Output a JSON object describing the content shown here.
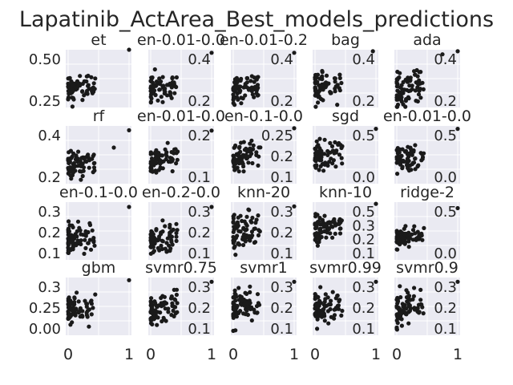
{
  "figure": {
    "title": "Lapatinib_ActArea_Best_models_predictions",
    "colors": {
      "panel_bg": "#eaeaf2",
      "grid": "#ffffff",
      "point": "#1a1a1a",
      "text": "#262626"
    }
  },
  "chart_data": [
    {
      "type": "scatter",
      "title": "et",
      "grid": true,
      "ylim": [
        0.1,
        0.5
      ],
      "yticks": [
        "0.25",
        "0.50"
      ],
      "xticks": [],
      "seed": 1,
      "n": 75,
      "y_mean": 0.22,
      "y_spread": 0.07,
      "outliers": [
        [
          1.0,
          0.5
        ]
      ]
    },
    {
      "type": "scatter",
      "title": "en-0.01-0.0",
      "grid": true,
      "ylim": [
        0.08,
        0.46
      ],
      "yticks": [
        "0.2",
        "0.4"
      ],
      "xticks": [],
      "seed": 2,
      "n": 75,
      "y_mean": 0.2,
      "y_spread": 0.07,
      "outliers": [
        [
          1.0,
          0.44
        ]
      ]
    },
    {
      "type": "scatter",
      "title": "en-0.01-0.2",
      "grid": true,
      "ylim": [
        0.08,
        0.46
      ],
      "yticks": [
        "0.2",
        "0.4"
      ],
      "xticks": [],
      "seed": 3,
      "n": 75,
      "y_mean": 0.2,
      "y_spread": 0.07,
      "outliers": [
        [
          1.0,
          0.44
        ]
      ]
    },
    {
      "type": "scatter",
      "title": "bag",
      "grid": true,
      "ylim": [
        0.08,
        0.46
      ],
      "yticks": [
        "0.2",
        "0.4"
      ],
      "xticks": [],
      "seed": 4,
      "n": 75,
      "y_mean": 0.2,
      "y_spread": 0.08,
      "outliers": [
        [
          0.95,
          0.45
        ]
      ]
    },
    {
      "type": "scatter",
      "title": "ada",
      "grid": true,
      "ylim": [
        0.08,
        0.46
      ],
      "yticks": [
        "0.2",
        "0.4"
      ],
      "xticks": [],
      "seed": 5,
      "n": 75,
      "y_mean": 0.18,
      "y_spread": 0.09,
      "outliers": [
        [
          0.75,
          0.43
        ],
        [
          1.0,
          0.45
        ]
      ]
    },
    {
      "type": "scatter",
      "title": "rf",
      "grid": true,
      "ylim": [
        0.05,
        0.45
      ],
      "yticks": [
        "0.2",
        "0.4"
      ],
      "xticks": [],
      "seed": 6,
      "n": 75,
      "y_mean": 0.18,
      "y_spread": 0.07,
      "outliers": [
        [
          0.75,
          0.3
        ],
        [
          1.0,
          0.42
        ]
      ]
    },
    {
      "type": "scatter",
      "title": "en-0.01-0.0",
      "grid": true,
      "ylim": [
        0.05,
        0.3
      ],
      "yticks": [
        "0.1",
        "0.2"
      ],
      "xticks": [],
      "seed": 7,
      "n": 75,
      "y_mean": 0.15,
      "y_spread": 0.04,
      "outliers": [
        [
          1.0,
          0.28
        ]
      ]
    },
    {
      "type": "scatter",
      "title": "en-0.1-0.0",
      "grid": true,
      "ylim": [
        0.05,
        0.3
      ],
      "yticks": [
        "0.1",
        "0.2",
        "0.25"
      ],
      "xticks": [],
      "seed": 8,
      "n": 75,
      "y_mean": 0.15,
      "y_spread": 0.05,
      "outliers": [
        [
          1.0,
          0.29
        ]
      ]
    },
    {
      "type": "scatter",
      "title": "sgd",
      "grid": true,
      "ylim": [
        -0.05,
        0.55
      ],
      "yticks": [
        "0.0",
        "0.5"
      ],
      "xticks": [],
      "seed": 9,
      "n": 75,
      "y_mean": 0.22,
      "y_spread": 0.12,
      "outliers": [
        [
          1.0,
          0.52
        ]
      ]
    },
    {
      "type": "scatter",
      "title": "en-0.01-0.0",
      "grid": true,
      "ylim": [
        -0.05,
        0.55
      ],
      "yticks": [
        "0.0",
        "0.5"
      ],
      "xticks": [],
      "seed": 10,
      "n": 75,
      "y_mean": 0.2,
      "y_spread": 0.1,
      "outliers": [
        [
          1.0,
          0.52
        ]
      ]
    },
    {
      "type": "scatter",
      "title": "en-0.1-0.0",
      "grid": true,
      "ylim": [
        0.08,
        0.32
      ],
      "yticks": [
        "0.1",
        "0.2",
        "0.3"
      ],
      "xticks": [],
      "seed": 11,
      "n": 75,
      "y_mean": 0.16,
      "y_spread": 0.05,
      "outliers": [
        [
          1.0,
          0.3
        ]
      ]
    },
    {
      "type": "scatter",
      "title": "en-0.2-0.0",
      "grid": true,
      "ylim": [
        0.08,
        0.32
      ],
      "yticks": [
        "0.1",
        "0.2",
        "0.3"
      ],
      "xticks": [],
      "seed": 12,
      "n": 75,
      "y_mean": 0.16,
      "y_spread": 0.05,
      "outliers": [
        [
          1.0,
          0.3
        ]
      ]
    },
    {
      "type": "scatter",
      "title": "knn-20",
      "grid": true,
      "ylim": [
        0.05,
        0.32
      ],
      "yticks": [
        "0.1",
        "0.2",
        "0.3"
      ],
      "xticks": [],
      "seed": 13,
      "n": 75,
      "y_mean": 0.18,
      "y_spread": 0.07,
      "outliers": [
        [
          1.0,
          0.3
        ]
      ]
    },
    {
      "type": "scatter",
      "title": "knn-10",
      "grid": true,
      "ylim": [
        -0.05,
        0.62
      ],
      "yticks": [
        "0.1",
        "0.2",
        "0.3",
        "0.5"
      ],
      "xticks": [],
      "seed": 14,
      "n": 75,
      "y_mean": 0.3,
      "y_spread": 0.13,
      "outliers": [
        [
          1.0,
          0.6
        ]
      ]
    },
    {
      "type": "scatter",
      "title": "ridge-2",
      "grid": true,
      "ylim": [
        -0.05,
        0.62
      ],
      "yticks": [
        "0.0",
        "0.5"
      ],
      "xticks": [],
      "seed": 15,
      "n": 75,
      "y_mean": 0.2,
      "y_spread": 0.08,
      "outliers": [
        [
          1.0,
          0.55
        ]
      ]
    },
    {
      "type": "scatter",
      "title": "gbm",
      "grid": true,
      "ylim": [
        -0.02,
        0.42
      ],
      "yticks": [
        "0.00",
        "0.25",
        "0.3"
      ],
      "xticks": [
        "0",
        "1"
      ],
      "seed": 16,
      "n": 75,
      "y_mean": 0.16,
      "y_spread": 0.08,
      "outliers": [
        [
          1.0,
          0.4
        ]
      ]
    },
    {
      "type": "scatter",
      "title": "svmr0.75",
      "grid": true,
      "ylim": [
        0.05,
        0.32
      ],
      "yticks": [
        "0.1",
        "0.2",
        "0.3"
      ],
      "xticks": [
        "0",
        "1"
      ],
      "seed": 17,
      "n": 75,
      "y_mean": 0.17,
      "y_spread": 0.06,
      "outliers": [
        [
          1.0,
          0.3
        ]
      ]
    },
    {
      "type": "scatter",
      "title": "svmr1",
      "grid": true,
      "ylim": [
        0.05,
        0.32
      ],
      "yticks": [
        "0.1",
        "0.2",
        "0.3"
      ],
      "xticks": [
        "0",
        "1"
      ],
      "seed": 18,
      "n": 75,
      "y_mean": 0.17,
      "y_spread": 0.06,
      "outliers": [
        [
          1.0,
          0.3
        ]
      ]
    },
    {
      "type": "scatter",
      "title": "svmr0.99",
      "grid": true,
      "ylim": [
        0.05,
        0.32
      ],
      "yticks": [
        "0.1",
        "0.2",
        "0.3"
      ],
      "xticks": [
        "0",
        "1"
      ],
      "seed": 19,
      "n": 75,
      "y_mean": 0.17,
      "y_spread": 0.06,
      "outliers": [
        [
          1.0,
          0.3
        ]
      ]
    },
    {
      "type": "scatter",
      "title": "svmr0.9",
      "grid": true,
      "ylim": [
        0.05,
        0.32
      ],
      "yticks": [
        "0.1",
        "0.2",
        "0.3"
      ],
      "xticks": [
        "0",
        "1"
      ],
      "seed": 20,
      "n": 75,
      "y_mean": 0.17,
      "y_spread": 0.06,
      "outliers": [
        [
          1.0,
          0.3
        ]
      ]
    }
  ]
}
